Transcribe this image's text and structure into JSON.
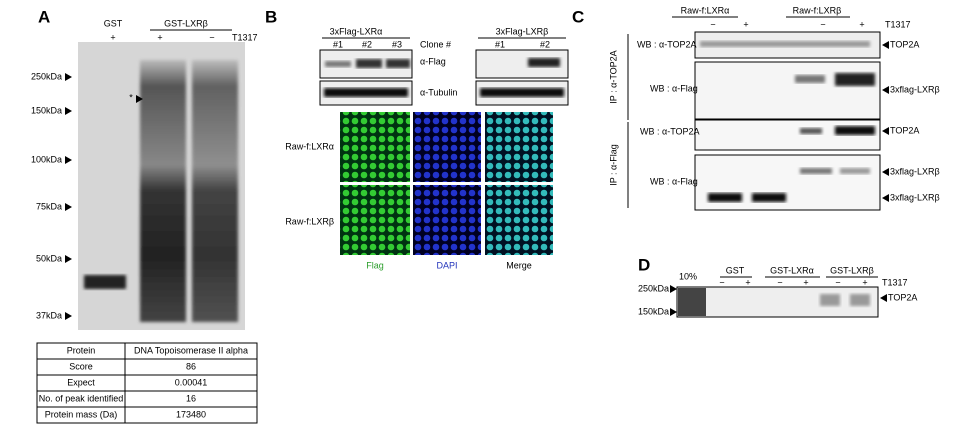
{
  "panel_a": {
    "label": "A",
    "groups": [
      "GST",
      "GST-LXRβ"
    ],
    "treatments": [
      "+",
      "+",
      "−"
    ],
    "treatment_label": "T1317",
    "markers": [
      "250kDa",
      "150kDa",
      "100kDa",
      "75kDa",
      "50kDa",
      "37kDa"
    ],
    "star": "*",
    "table": {
      "header": [
        "Protein",
        "DNA Topoisomerase II alpha"
      ],
      "rows": [
        [
          "Score",
          "86"
        ],
        [
          "Expect",
          "0.00041"
        ],
        [
          "No. of peak identified",
          "16"
        ],
        [
          "Protein mass (Da)",
          "173480"
        ]
      ]
    }
  },
  "panel_b": {
    "label": "B",
    "groups": [
      "3xFlag-LXRα",
      "3xFlag-LXRβ"
    ],
    "clones": [
      "#1",
      "#2",
      "#3",
      "#1",
      "#2"
    ],
    "clone_label": "Clone #",
    "blots": [
      "α-Flag",
      "α-Tubulin"
    ],
    "rows": [
      "Raw-f:LXRα",
      "Raw-f:LXRβ"
    ],
    "channels": [
      "Flag",
      "DAPI",
      "Merge"
    ]
  },
  "panel_c": {
    "label": "C",
    "groups": [
      "Raw-f:LXRα",
      "Raw-f:LXRβ"
    ],
    "treatments": [
      "−",
      "+",
      "−",
      "+"
    ],
    "treatment_label": "T1317",
    "ip": [
      "IP : α-TOP2A",
      "IP : α-Flag"
    ],
    "wb": [
      "WB : α-TOP2A",
      "WB : α-Flag",
      "WB : α-TOP2A",
      "WB : α-Flag"
    ],
    "bands": [
      "TOP2A",
      "3xflag-LXRβ",
      "TOP2A",
      "3xflag-LXRβ",
      "3xflag-LXRβ"
    ]
  },
  "panel_d": {
    "label": "D",
    "input": "10%",
    "groups": [
      "GST",
      "GST-LXRα",
      "GST-LXRβ"
    ],
    "treatments": [
      "−",
      "+",
      "−",
      "+",
      "−",
      "+"
    ],
    "treatment_label": "T1317",
    "markers": [
      "250kDa",
      "150kDa"
    ],
    "band": "TOP2A"
  }
}
